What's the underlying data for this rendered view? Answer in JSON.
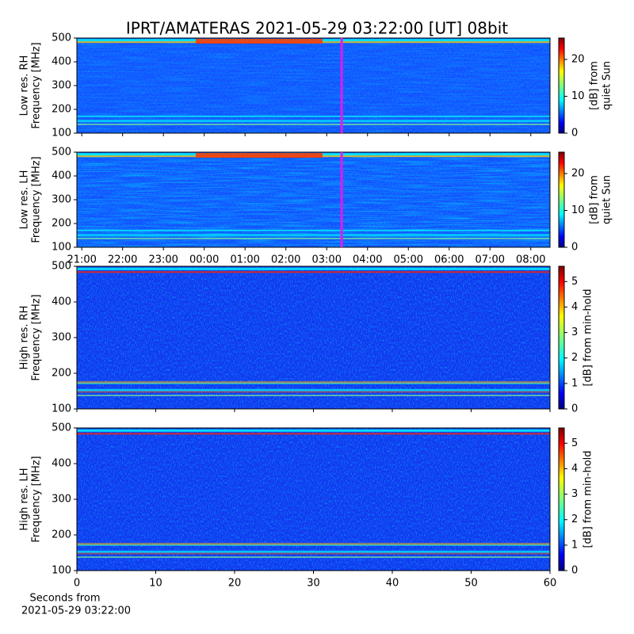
{
  "chart_data": [
    {
      "type": "heatmap",
      "title": "IPRT/AMATERAS 2021-05-29 03:22:00 [UT]   08bit",
      "ylabel": [
        "Low res. RH",
        "Frequency [MHz]"
      ],
      "ylim": [
        100,
        500
      ],
      "yticks": [
        100,
        200,
        300,
        400,
        500
      ],
      "xlim": [
        20.88,
        32.47
      ],
      "marker_x": 27.367,
      "marker_color": "#e619e6",
      "colorbar": {
        "label": [
          "[dB] from",
          "quiet Sun"
        ],
        "lim": [
          0,
          25.8
        ],
        "ticks": [
          0,
          10,
          20
        ]
      }
    },
    {
      "type": "heatmap",
      "ylabel": [
        "Low res. LH",
        "Frequency [MHz]"
      ],
      "ylim": [
        100,
        500
      ],
      "yticks": [
        100,
        200,
        300,
        400,
        500
      ],
      "xlim": [
        20.88,
        32.47
      ],
      "xticks": [
        {
          "value": 21,
          "label": "21:00"
        },
        {
          "value": 22,
          "label": "22:00"
        },
        {
          "value": 23,
          "label": "23:00"
        },
        {
          "value": 24,
          "label": "00:00"
        },
        {
          "value": 25,
          "label": "01:00"
        },
        {
          "value": 26,
          "label": "02:00"
        },
        {
          "value": 27,
          "label": "03:00"
        },
        {
          "value": 28,
          "label": "04:00"
        },
        {
          "value": 29,
          "label": "05:00"
        },
        {
          "value": 30,
          "label": "06:00"
        },
        {
          "value": 31,
          "label": "07:00"
        },
        {
          "value": 32,
          "label": "08:00"
        }
      ],
      "colorbar": {
        "label": [
          "[dB] from",
          "quiet Sun"
        ],
        "lim": [
          0,
          25.8
        ],
        "ticks": [
          0,
          10,
          20
        ]
      }
    },
    {
      "type": "heatmap",
      "ylabel": [
        "High res. RH",
        "Frequency [MHz]"
      ],
      "ylim": [
        100,
        500
      ],
      "yticks": [
        100,
        200,
        300,
        400,
        500
      ],
      "xlim": [
        0,
        60
      ],
      "colorbar": {
        "label": [
          "[dB] from min-hold"
        ],
        "lim": [
          0,
          5.6
        ],
        "ticks": [
          0,
          1,
          2,
          3,
          4,
          5
        ]
      }
    },
    {
      "type": "heatmap",
      "ylabel": [
        "High res. LH",
        "Frequency [MHz]"
      ],
      "ylim": [
        100,
        500
      ],
      "yticks": [
        100,
        200,
        300,
        400,
        500
      ],
      "xlim": [
        0,
        60
      ],
      "xticks": [
        0,
        10,
        20,
        30,
        40,
        50,
        60
      ],
      "xlabel": [
        "Seconds from",
        "2021-05-29 03:22:00"
      ],
      "colorbar": {
        "label": [
          "[dB] from min-hold"
        ],
        "lim": [
          0,
          5.6
        ],
        "ticks": [
          0,
          1,
          2,
          3,
          4,
          5
        ]
      }
    }
  ]
}
